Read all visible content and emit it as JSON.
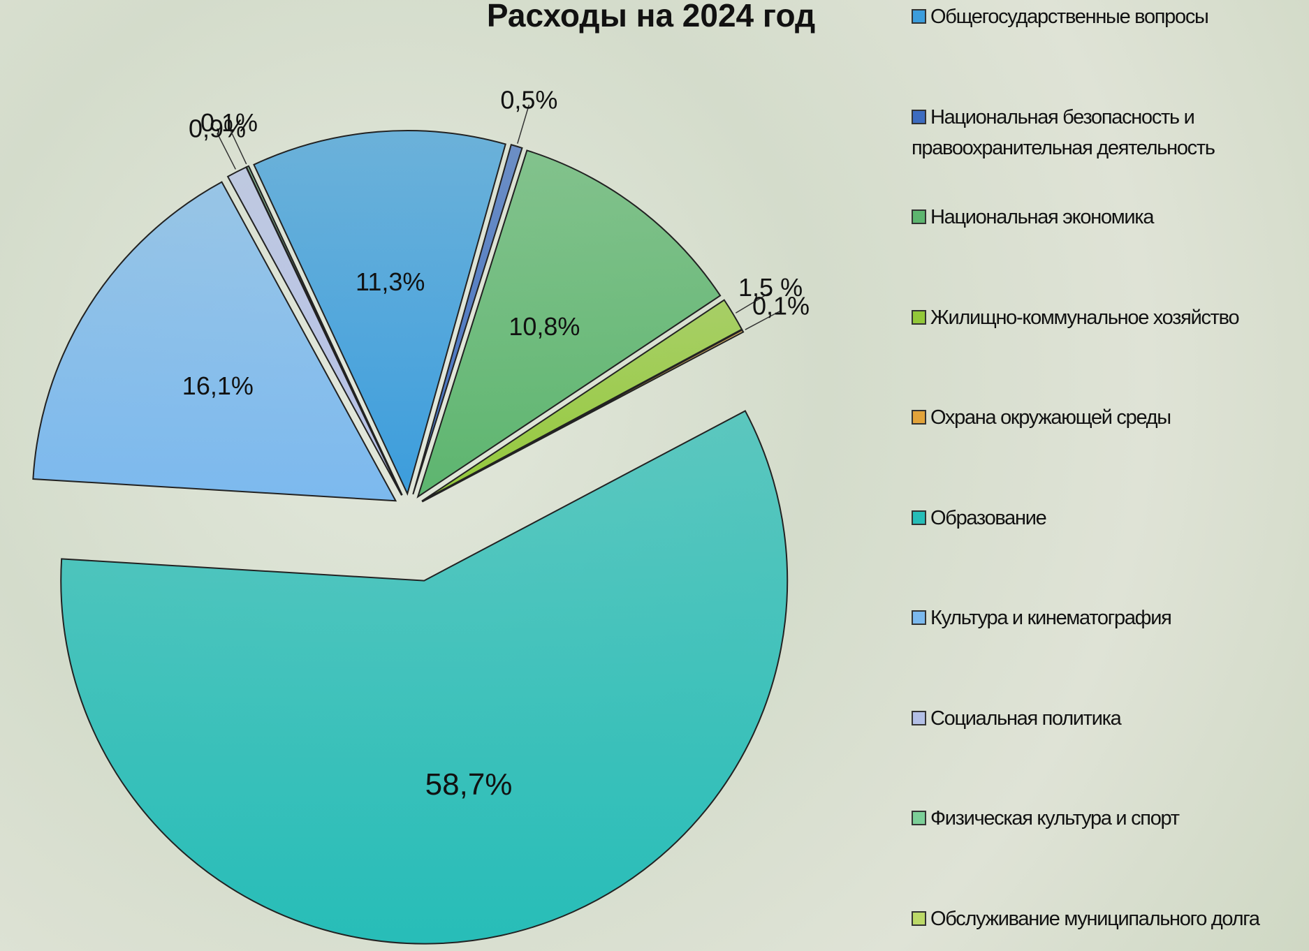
{
  "chart_data": {
    "type": "pie",
    "title": "Расходы на 2024 год",
    "categories": [
      "Общегосударственные вопросы",
      "Национальная безопасность и правоохранительная деятельность",
      "Национальная экономика",
      "Жилищно-коммунальное хозяйство",
      "Охрана окружающей среды",
      "Образование",
      "Культура и кинематография",
      "Социальная политика",
      "Физическая культура и спорт",
      "Обслуживание муниципального долга"
    ],
    "values": [
      11.3,
      0.5,
      10.8,
      1.5,
      0.1,
      58.7,
      16.1,
      0.9,
      0.1,
      0
    ],
    "value_labels": [
      "11,3%",
      "0,5%",
      "10,8%",
      "1,5 %",
      "0,1%",
      "58,7%",
      "16,1%",
      "0,9%",
      "0,1%",
      null
    ],
    "colors": [
      "#3c9ddc",
      "#3d6cc0",
      "#5db56f",
      "#93c83a",
      "#e2a33a",
      "#27bdb8",
      "#7cb9ee",
      "#b3bfe6",
      "#7ccf98",
      "#bcd968"
    ],
    "legend": "right"
  }
}
